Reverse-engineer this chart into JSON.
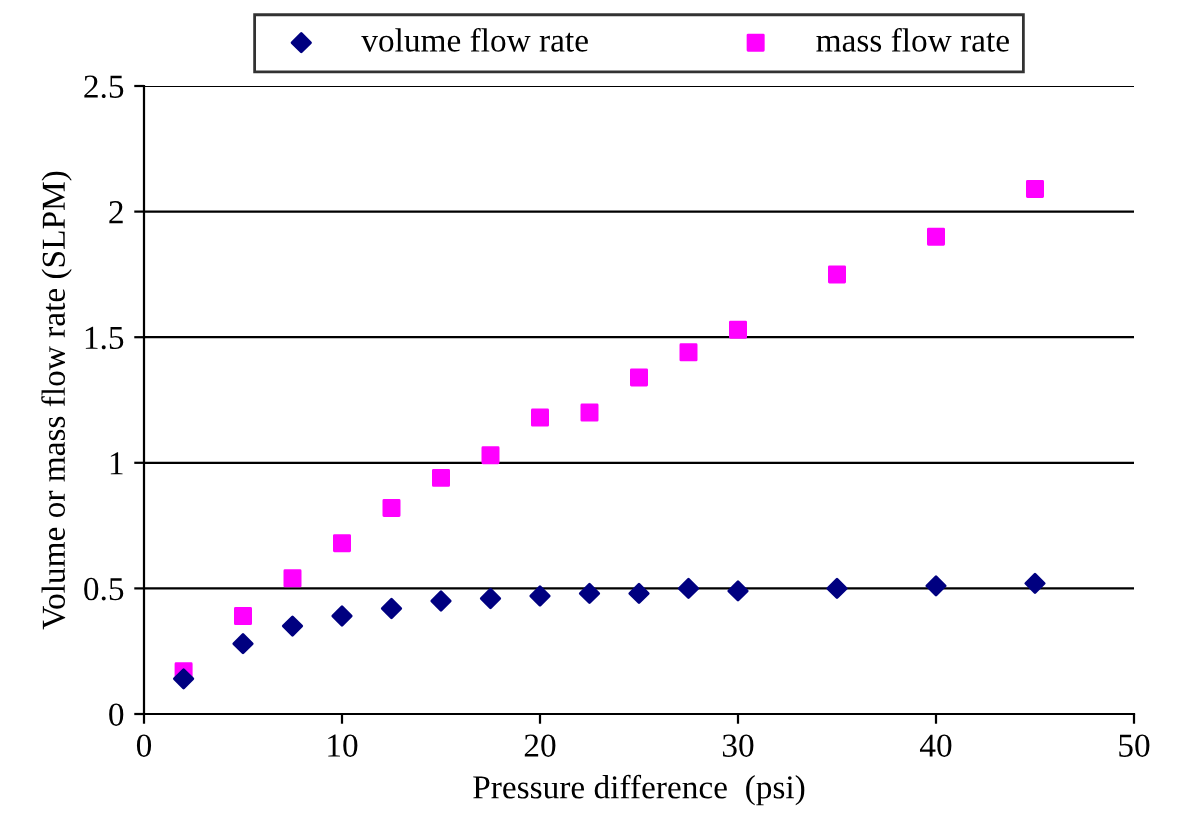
{
  "chart_data": {
    "type": "scatter",
    "xlabel": "Pressure difference  (psi)",
    "ylabel": "Volume or mass flow rate (SLPM)",
    "x": [
      2,
      5,
      7.5,
      10,
      12.5,
      15,
      17.5,
      20,
      22.5,
      25,
      27.5,
      30,
      35,
      40,
      45
    ],
    "series": [
      {
        "name": "volume flow rate",
        "color": "#000080",
        "marker": "diamond",
        "values": [
          0.14,
          0.28,
          0.35,
          0.39,
          0.42,
          0.45,
          0.46,
          0.47,
          0.48,
          0.48,
          0.5,
          0.49,
          0.5,
          0.51,
          0.52
        ]
      },
      {
        "name": "mass flow rate",
        "color": "#ff00ff",
        "marker": "square",
        "values": [
          0.17,
          0.39,
          0.54,
          0.68,
          0.82,
          0.94,
          1.03,
          1.18,
          1.2,
          1.34,
          1.44,
          1.53,
          1.75,
          1.9,
          2.09
        ]
      }
    ],
    "xlim": [
      0,
      50
    ],
    "xticks": [
      0,
      10,
      20,
      30,
      40,
      50
    ],
    "ylim": [
      0,
      2.5
    ],
    "yticks": [
      0,
      0.5,
      1,
      1.5,
      2,
      2.5
    ],
    "grid": "y",
    "legend": "top"
  }
}
